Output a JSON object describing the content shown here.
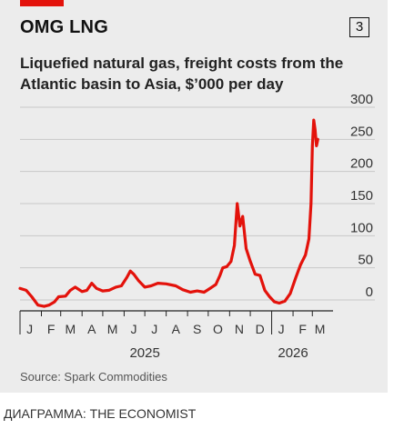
{
  "header": {
    "title": "OMG LNG",
    "badge": "3",
    "subtitle": "Liquefied natural gas, freight costs from the Atlantic basin to Asia, $’000 per day"
  },
  "footer": {
    "source": "Source: Spark Commodities",
    "credit": "ДИАГРАММА: THE ECONOMIST"
  },
  "colors": {
    "line": "#e3120b",
    "red_tag": "#e3120b",
    "grid": "#c8c8c8",
    "background": "#ececec"
  },
  "chart_data": {
    "type": "line",
    "ylim": [
      0,
      300
    ],
    "yticks": [
      0,
      50,
      100,
      150,
      200,
      250,
      300
    ],
    "ytick_labels": [
      "0",
      "50",
      "100",
      "150",
      "200",
      "250",
      "300"
    ],
    "grid": "horizontal",
    "xlim": [
      "2025-01-01",
      "2026-03-31"
    ],
    "month_labels": [
      {
        "label": "J",
        "date": "2025-01-15"
      },
      {
        "label": "F",
        "date": "2025-02-15"
      },
      {
        "label": "M",
        "date": "2025-03-15"
      },
      {
        "label": "A",
        "date": "2025-04-15"
      },
      {
        "label": "M",
        "date": "2025-05-15"
      },
      {
        "label": "J",
        "date": "2025-06-15"
      },
      {
        "label": "J",
        "date": "2025-07-15"
      },
      {
        "label": "A",
        "date": "2025-08-15"
      },
      {
        "label": "S",
        "date": "2025-09-15"
      },
      {
        "label": "O",
        "date": "2025-10-15"
      },
      {
        "label": "N",
        "date": "2025-11-15"
      },
      {
        "label": "D",
        "date": "2025-12-15"
      },
      {
        "label": "J",
        "date": "2026-01-15"
      },
      {
        "label": "F",
        "date": "2026-02-15"
      },
      {
        "label": "M",
        "date": "2026-03-12"
      }
    ],
    "year_labels": [
      {
        "label": "2025",
        "date": "2025-07-01"
      },
      {
        "label": "2026",
        "date": "2026-02-01"
      }
    ],
    "x": [
      "2025-01-01",
      "2025-01-10",
      "2025-01-18",
      "2025-01-27",
      "2025-02-05",
      "2025-02-12",
      "2025-02-20",
      "2025-02-26",
      "2025-03-08",
      "2025-03-15",
      "2025-03-22",
      "2025-04-01",
      "2025-04-08",
      "2025-04-15",
      "2025-04-22",
      "2025-05-01",
      "2025-05-10",
      "2025-05-20",
      "2025-05-28",
      "2025-06-05",
      "2025-06-10",
      "2025-06-15",
      "2025-06-22",
      "2025-07-01",
      "2025-07-10",
      "2025-07-20",
      "2025-08-01",
      "2025-08-15",
      "2025-08-25",
      "2025-09-05",
      "2025-09-15",
      "2025-09-25",
      "2025-10-05",
      "2025-10-12",
      "2025-10-18",
      "2025-10-22",
      "2025-10-28",
      "2025-11-03",
      "2025-11-08",
      "2025-11-12",
      "2025-11-16",
      "2025-11-20",
      "2025-11-25",
      "2025-12-01",
      "2025-12-08",
      "2025-12-15",
      "2025-12-22",
      "2025-12-29",
      "2026-01-05",
      "2026-01-12",
      "2026-01-20",
      "2026-01-28",
      "2026-02-05",
      "2026-02-12",
      "2026-02-19",
      "2026-02-24",
      "2026-02-27",
      "2026-03-01",
      "2026-03-03",
      "2026-03-05",
      "2026-03-07",
      "2026-03-09"
    ],
    "values": [
      18,
      15,
      5,
      -8,
      -10,
      -8,
      -3,
      5,
      6,
      15,
      20,
      13,
      15,
      26,
      18,
      14,
      15,
      20,
      22,
      35,
      45,
      40,
      30,
      20,
      22,
      26,
      25,
      22,
      16,
      12,
      14,
      12,
      19,
      24,
      38,
      50,
      52,
      60,
      85,
      150,
      115,
      130,
      80,
      60,
      40,
      38,
      15,
      5,
      -3,
      -5,
      -2,
      10,
      35,
      55,
      70,
      95,
      150,
      240,
      280,
      265,
      240,
      250
    ]
  }
}
